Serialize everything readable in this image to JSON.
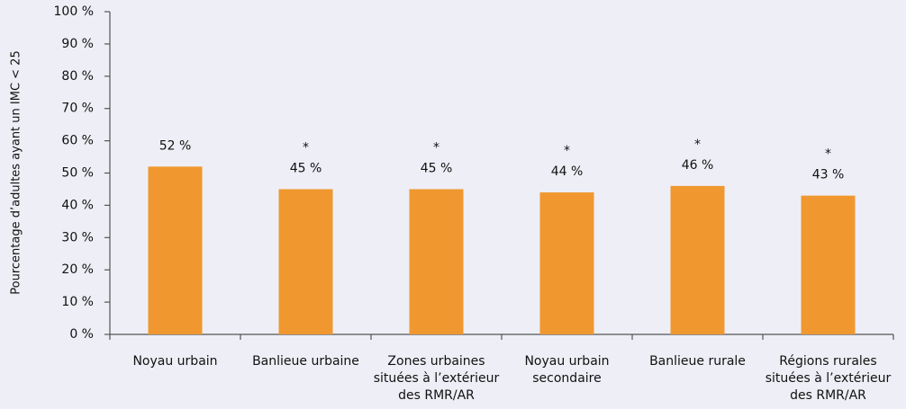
{
  "chart_data": {
    "type": "bar",
    "y_label": "Pourcentage d’adultes ayant un IMC < 25",
    "categories": [
      "Noyau urbain",
      "Banlieue urbaine",
      "Zones urbaines\nsituées à l’extérieur\ndes RMR/AR",
      "Noyau urbain\nsecondaire",
      "Banlieue rurale",
      "Régions rurales\nsituées à l’extérieur\ndes RMR/AR"
    ],
    "values": [
      52,
      45,
      45,
      44,
      46,
      43
    ],
    "value_labels": [
      "52 %",
      "45 %",
      "45 %",
      "44 %",
      "46 %",
      "43 %"
    ],
    "annotations": [
      null,
      "*",
      "*",
      "*",
      "*",
      "*"
    ],
    "color": "#f0982f",
    "ylim": [
      0,
      100
    ],
    "yticks": [
      {
        "value": 0,
        "label": "0 %"
      },
      {
        "value": 10,
        "label": "10 %"
      },
      {
        "value": 20,
        "label": "20 %"
      },
      {
        "value": 30,
        "label": "30 %"
      },
      {
        "value": 40,
        "label": "40 %"
      },
      {
        "value": 50,
        "label": "50 %"
      },
      {
        "value": 60,
        "label": "60 %"
      },
      {
        "value": 70,
        "label": "70 %"
      },
      {
        "value": 80,
        "label": "80 %"
      },
      {
        "value": 90,
        "label": "90 %"
      },
      {
        "value": 100,
        "label": "100 %"
      }
    ],
    "grid": false
  }
}
